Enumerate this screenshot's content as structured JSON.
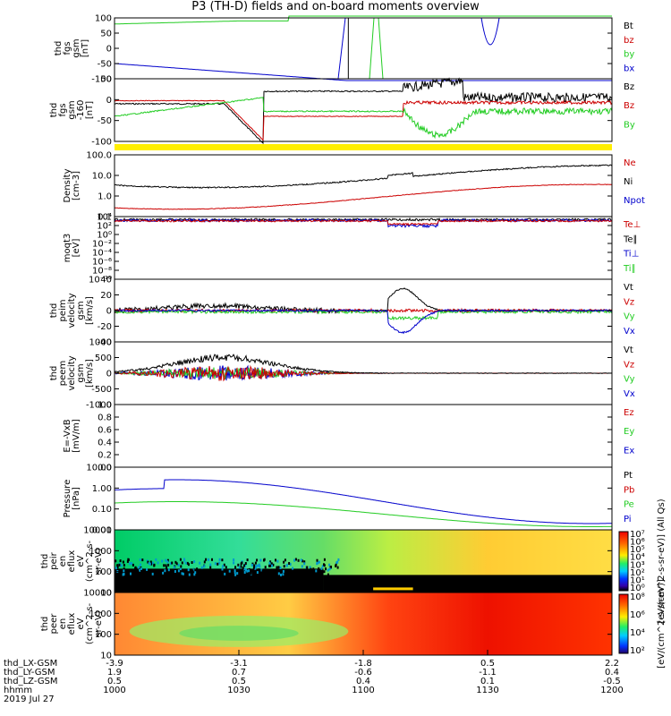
{
  "title": "P3 (TH-D) fields and on-board moments overview",
  "colors": {
    "black": "#000000",
    "red": "#cc0000",
    "green": "#22cc22",
    "blue": "#0000cc",
    "yellow": "#ffee00"
  },
  "chart_data": [
    {
      "type": "line",
      "ylabel": [
        "thd",
        "fgs",
        "gsm",
        "[nT]"
      ],
      "ylim": [
        -100,
        100
      ],
      "yticks": [
        "100",
        "50",
        "0",
        "-50",
        "-100"
      ],
      "legend": [
        {
          "name": "Bt",
          "color": "black"
        },
        {
          "name": "bz",
          "color": "red"
        },
        {
          "name": "by",
          "color": "green"
        },
        {
          "name": "bx",
          "color": "blue"
        }
      ]
    },
    {
      "type": "line",
      "ylabel": [
        "thd",
        "fgs",
        "gsm",
        "-160",
        "[nT]"
      ],
      "ylim": [
        -125,
        65
      ],
      "yticks": [
        "50",
        "0",
        "-50",
        "-100"
      ],
      "legend": [
        {
          "name": "Bz",
          "color": "black"
        },
        {
          "name": "Bz",
          "color": "red"
        },
        {
          "name": "By",
          "color": "green"
        }
      ]
    },
    {
      "type": "bar",
      "band_color": "yellow"
    },
    {
      "type": "line",
      "ylabel": [
        "Density",
        "[cm-3]"
      ],
      "yscale": "log",
      "yticks": [
        "100.0",
        "10.0",
        "1.0",
        "0.1"
      ],
      "legend": [
        {
          "name": "Ne",
          "color": "red"
        },
        {
          "name": "Ni",
          "color": "black"
        },
        {
          "name": "Npot",
          "color": "blue"
        }
      ]
    },
    {
      "type": "line",
      "ylabel": [
        "moqt3",
        "[eV]"
      ],
      "yscale": "log",
      "yticks": [
        "10⁴",
        "10²",
        "10⁰",
        "10⁻²",
        "10⁻⁴",
        "10⁻⁶",
        "10⁻⁸",
        "10⁻¹⁰"
      ],
      "legend": [
        {
          "name": "Te⊥",
          "color": "red"
        },
        {
          "name": "Te∥",
          "color": "black"
        },
        {
          "name": "Ti⊥",
          "color": "blue"
        },
        {
          "name": "Ti∥",
          "color": "green"
        }
      ]
    },
    {
      "type": "line",
      "ylabel": [
        "thd",
        "peim",
        "velocity",
        "gsm",
        "[km/s]"
      ],
      "ylim": [
        -40,
        40
      ],
      "yticks": [
        "40",
        "20",
        "0",
        "-20",
        "-40"
      ],
      "legend": [
        {
          "name": "Vt",
          "color": "black"
        },
        {
          "name": "Vz",
          "color": "red"
        },
        {
          "name": "Vy",
          "color": "green"
        },
        {
          "name": "Vx",
          "color": "blue"
        }
      ]
    },
    {
      "type": "line",
      "ylabel": [
        "thd",
        "peem",
        "velocity",
        "gsm",
        "[km/s]"
      ],
      "ylim": [
        -1000,
        1000
      ],
      "yticks": [
        "1000",
        "500",
        "0",
        "-500",
        "-1000"
      ],
      "legend": [
        {
          "name": "Vt",
          "color": "black"
        },
        {
          "name": "Vz",
          "color": "red"
        },
        {
          "name": "Vy",
          "color": "green"
        },
        {
          "name": "Vx",
          "color": "blue"
        }
      ]
    },
    {
      "type": "line",
      "ylabel": [
        "E=-VxB",
        "[mV/m]"
      ],
      "ylim": [
        0,
        1
      ],
      "yticks": [
        "1.0",
        "0.8",
        "0.6",
        "0.4",
        "0.2",
        "0.0"
      ],
      "legend": [
        {
          "name": "Ez",
          "color": "red"
        },
        {
          "name": "Ey",
          "color": "green"
        },
        {
          "name": "Ex",
          "color": "blue"
        }
      ]
    },
    {
      "type": "line",
      "ylabel": [
        "Pressure",
        "[nPa]"
      ],
      "yscale": "log",
      "yticks": [
        "10.00",
        "1.00",
        "0.10",
        "0.01"
      ],
      "legend": [
        {
          "name": "Pt",
          "color": "black"
        },
        {
          "name": "Pb",
          "color": "red"
        },
        {
          "name": "Pe",
          "color": "green"
        },
        {
          "name": "Pi",
          "color": "blue"
        }
      ]
    },
    {
      "type": "heatmap",
      "ylabel": [
        "thd",
        "peir",
        "en",
        "eflux",
        "eV",
        "(cm^2-s-",
        "sr-eV)"
      ],
      "yscale": "log",
      "yticks": [
        "10000",
        "1000",
        "100",
        "10"
      ],
      "colorbar": {
        "ticks": [
          "10⁷",
          "10⁶",
          "10⁵",
          "10⁴",
          "10³",
          "10²",
          "10¹",
          "10⁰"
        ],
        "label": "[eV/(cm^2-s-sr-eV)] (All Qs)"
      }
    },
    {
      "type": "heatmap",
      "ylabel": [
        "thd",
        "peer",
        "en",
        "eflux",
        "eV",
        "(cm^2-s-",
        "sr-eV)"
      ],
      "yscale": "log",
      "yticks": [
        "10000",
        "1000",
        "100",
        "10"
      ],
      "colorbar": {
        "ticks": [
          "10⁸",
          "10⁶",
          "10⁴",
          "10²"
        ],
        "label": "[eV/(cm^2-s-sr-eV)]"
      }
    }
  ],
  "x_axis": {
    "row_labels": [
      "thd_LX-GSM",
      "thd_LY-GSM",
      "thd_LZ-GSM",
      "hhmm",
      "2019 Jul 27"
    ],
    "columns": [
      {
        "LX": "-3.9",
        "LY": "1.9",
        "LZ": "0.5",
        "hhmm": "1000"
      },
      {
        "LX": "-3.1",
        "LY": "0.7",
        "LZ": "0.5",
        "hhmm": "1030"
      },
      {
        "LX": "-1.8",
        "LY": "-0.6",
        "LZ": "0.4",
        "hhmm": "1100"
      },
      {
        "LX": "0.5",
        "LY": "-1.1",
        "LZ": "0.1",
        "hhmm": "1130"
      },
      {
        "LX": "2.2",
        "LY": "0.4",
        "LZ": "-0.5",
        "hhmm": "1200"
      }
    ]
  }
}
